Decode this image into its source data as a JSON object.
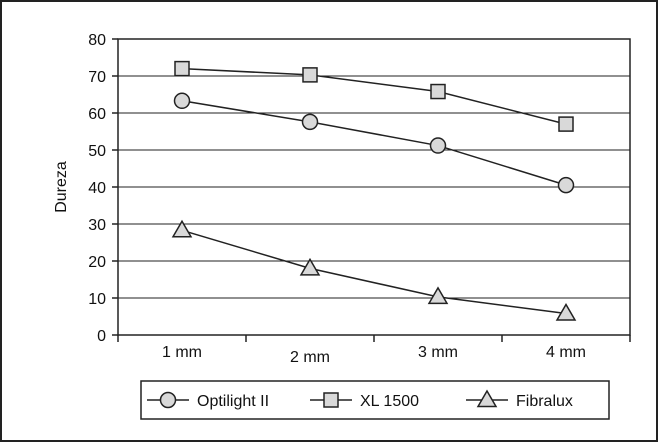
{
  "chart_data": {
    "type": "line",
    "title": "",
    "xlabel": "",
    "ylabel": "Dureza",
    "categories": [
      "1 mm",
      "2 mm",
      "3 mm",
      "4 mm"
    ],
    "ylim": [
      0,
      80
    ],
    "yticks": [
      0,
      10,
      20,
      30,
      40,
      50,
      60,
      70,
      80
    ],
    "grid": "horizontal",
    "legend_position": "bottom",
    "series": [
      {
        "name": "Optilight II",
        "marker": "circle",
        "values": [
          63.3,
          57.6,
          51.2,
          40.5
        ]
      },
      {
        "name": "XL 1500",
        "marker": "square",
        "values": [
          72,
          70.3,
          65.8,
          57
        ]
      },
      {
        "name": "Fibralux",
        "marker": "triangle",
        "values": [
          28.3,
          18,
          10.3,
          5.8
        ]
      }
    ],
    "colors": {
      "line": "#222222",
      "marker_fill": "#d9d9d9",
      "grid": "#222222"
    }
  }
}
